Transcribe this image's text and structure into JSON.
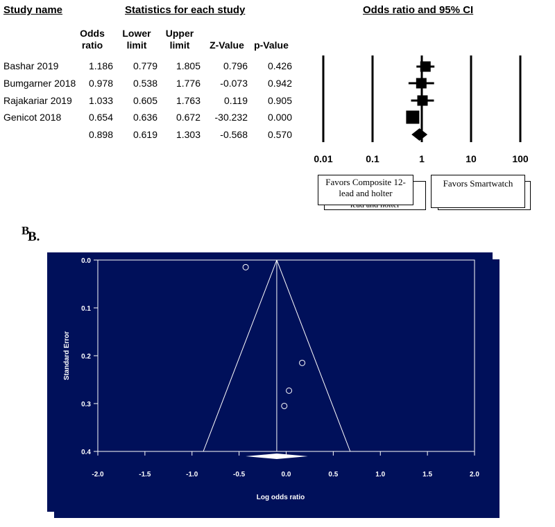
{
  "forest": {
    "header_study": "Study name",
    "header_stats": "Statistics for each study",
    "header_plot": "Odds ratio and 95% CI",
    "col_labels": [
      [
        "Odds",
        "ratio"
      ],
      [
        "Lower",
        "limit"
      ],
      [
        "Upper",
        "limit"
      ],
      [
        "Z-Value"
      ],
      [
        "p-Value"
      ]
    ],
    "favor_left": "Favors Composite 12-lead and holter",
    "favor_left_ghost": "lead and holter",
    "favor_right": "Favors Smartwatch"
  },
  "funnel": {
    "section_label_main": "B",
    "section_label_sub": "B."
  },
  "chart_data": [
    {
      "type": "forest",
      "x_scale": "log",
      "x_ticks": [
        0.01,
        0.1,
        1,
        10,
        100
      ],
      "x_tick_labels": [
        "0.01",
        "0.1",
        "1",
        "10",
        "100"
      ],
      "studies": [
        {
          "name": "Bashar 2019",
          "or": 1.186,
          "lower": 0.779,
          "upper": 1.805,
          "z": 0.796,
          "p": 0.426,
          "or_s": "1.186",
          "lower_s": "0.779",
          "upper_s": "1.805",
          "z_s": "0.796",
          "p_s": "0.426"
        },
        {
          "name": "Bumgarner 2018",
          "or": 0.978,
          "lower": 0.538,
          "upper": 1.776,
          "z": -0.073,
          "p": 0.942,
          "or_s": "0.978",
          "lower_s": "0.538",
          "upper_s": "1.776",
          "z_s": "-0.073",
          "p_s": "0.942"
        },
        {
          "name": "Rajakariar 2019",
          "or": 1.033,
          "lower": 0.605,
          "upper": 1.763,
          "z": 0.119,
          "p": 0.905,
          "or_s": "1.033",
          "lower_s": "0.605",
          "upper_s": "1.763",
          "z_s": "0.119",
          "p_s": "0.905"
        },
        {
          "name": "Genicot 2018",
          "or": 0.654,
          "lower": 0.636,
          "upper": 0.672,
          "z": -30.232,
          "p": 0.0,
          "or_s": "0.654",
          "lower_s": "0.636",
          "upper_s": "0.672",
          "z_s": "-30.232",
          "p_s": "0.000"
        }
      ],
      "summary": {
        "or": 0.898,
        "lower": 0.619,
        "upper": 1.303,
        "z": -0.568,
        "p": 0.57,
        "or_s": "0.898",
        "lower_s": "0.619",
        "upper_s": "1.303",
        "z_s": "-0.568",
        "p_s": "0.570"
      }
    },
    {
      "type": "scatter",
      "xlabel": "Log odds ratio",
      "ylabel": "Standard Error",
      "xlim": [
        -2.0,
        2.0
      ],
      "ylim": [
        0.0,
        0.4
      ],
      "y_inverted": true,
      "x_ticks": [
        "-2.0",
        "-1.5",
        "-1.0",
        "-0.5",
        "0.0",
        "0.5",
        "1.0",
        "1.5",
        "2.0"
      ],
      "y_ticks": [
        "0.0",
        "0.1",
        "0.2",
        "0.3",
        "0.4"
      ],
      "points": [
        {
          "x": -0.43,
          "y": 0.015
        },
        {
          "x": 0.17,
          "y": 0.215
        },
        {
          "x": 0.03,
          "y": 0.273
        },
        {
          "x": -0.02,
          "y": 0.305
        }
      ],
      "funnel_apex": {
        "x": -0.1,
        "y": 0.0
      },
      "funnel_base": {
        "left": -0.88,
        "right": 0.68,
        "y": 0.4
      },
      "summary_diamond": {
        "center": -0.1,
        "left": -0.43,
        "right": 0.23,
        "y": 0.4
      },
      "colors": {
        "background": "#00105a",
        "foreground": "#ffffff"
      }
    }
  ]
}
